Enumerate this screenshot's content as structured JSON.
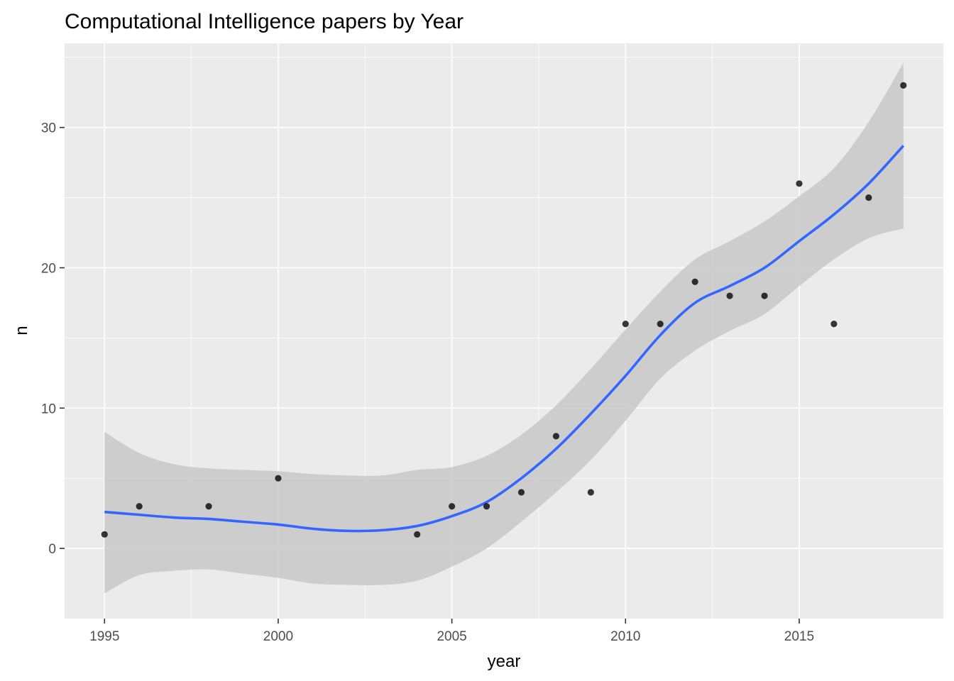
{
  "chart_data": {
    "type": "scatter",
    "title": "Computational Intelligence papers by Year",
    "xlabel": "year",
    "ylabel": "n",
    "xlim": [
      1993.85,
      2019.15
    ],
    "ylim": [
      -5.0,
      36.0
    ],
    "x_ticks": [
      1995,
      2000,
      2005,
      2010,
      2015
    ],
    "y_ticks": [
      0,
      10,
      20,
      30
    ],
    "x_tick_labels": [
      "1995",
      "2000",
      "2005",
      "2010",
      "2015"
    ],
    "y_tick_labels": [
      "0",
      "10",
      "20",
      "30"
    ],
    "grid": true,
    "legend": "none",
    "colors": {
      "panel": "#ebebeb",
      "points": "#000000",
      "smooth_line": "#3366ff",
      "confidence_band": "#c8c8c8"
    },
    "points": [
      {
        "x": 1995,
        "y": 1
      },
      {
        "x": 1996,
        "y": 3
      },
      {
        "x": 1998,
        "y": 3
      },
      {
        "x": 2000,
        "y": 5
      },
      {
        "x": 2004,
        "y": 1
      },
      {
        "x": 2005,
        "y": 3
      },
      {
        "x": 2006,
        "y": 3
      },
      {
        "x": 2007,
        "y": 4
      },
      {
        "x": 2008,
        "y": 8
      },
      {
        "x": 2009,
        "y": 4
      },
      {
        "x": 2010,
        "y": 16
      },
      {
        "x": 2011,
        "y": 16
      },
      {
        "x": 2012,
        "y": 19
      },
      {
        "x": 2013,
        "y": 18
      },
      {
        "x": 2014,
        "y": 18
      },
      {
        "x": 2015,
        "y": 26
      },
      {
        "x": 2016,
        "y": 16
      },
      {
        "x": 2017,
        "y": 25
      },
      {
        "x": 2018,
        "y": 33
      }
    ],
    "smooth": {
      "x": [
        1995,
        1996,
        1997,
        1998,
        1999,
        2000,
        2001,
        2002,
        2003,
        2004,
        2005,
        2006,
        2007,
        2008,
        2009,
        2010,
        2011,
        2012,
        2013,
        2014,
        2015,
        2016,
        2017,
        2018
      ],
      "y": [
        2.6,
        2.4,
        2.2,
        2.1,
        1.9,
        1.7,
        1.4,
        1.25,
        1.3,
        1.6,
        2.3,
        3.3,
        5.0,
        7.1,
        9.6,
        12.3,
        15.2,
        17.5,
        18.7,
        20.0,
        21.9,
        23.8,
        26.0,
        28.7
      ],
      "lower": [
        -3.2,
        -1.9,
        -1.6,
        -1.5,
        -1.8,
        -2.1,
        -2.5,
        -2.6,
        -2.6,
        -2.3,
        -1.3,
        0.0,
        1.9,
        4.0,
        6.3,
        9.1,
        12.1,
        14.1,
        15.5,
        16.7,
        18.7,
        20.6,
        22.1,
        22.8
      ],
      "upper": [
        8.3,
        6.8,
        6.0,
        5.7,
        5.6,
        5.5,
        5.3,
        5.2,
        5.2,
        5.6,
        5.8,
        6.6,
        8.1,
        10.2,
        12.8,
        15.6,
        18.3,
        20.6,
        21.9,
        23.3,
        25.1,
        27.1,
        30.4,
        34.6
      ]
    }
  }
}
